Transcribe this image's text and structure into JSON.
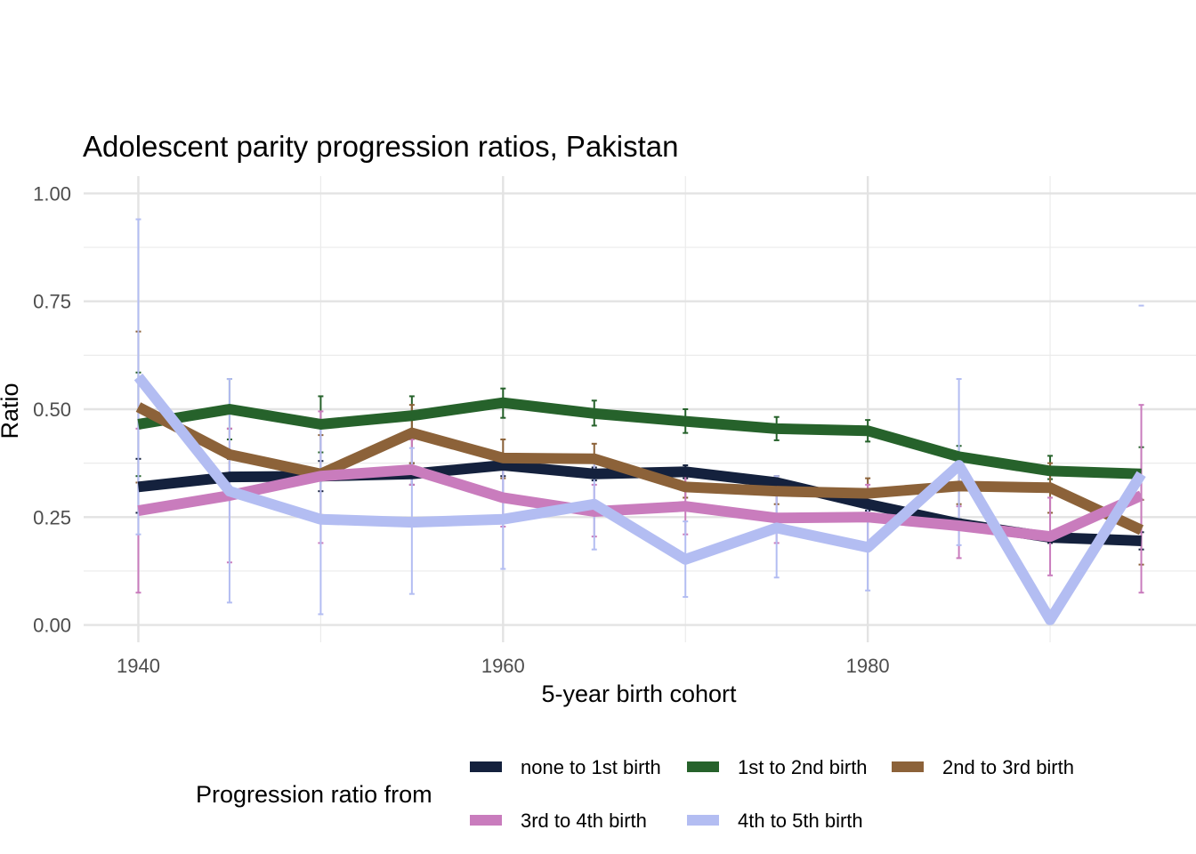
{
  "chart_data": {
    "type": "line",
    "title": "Adolescent parity progression ratios,  Pakistan",
    "xlabel": "5-year birth cohort",
    "ylabel": "Ratio",
    "x": [
      1940,
      1945,
      1950,
      1955,
      1960,
      1965,
      1970,
      1975,
      1980,
      1985,
      1990,
      1995
    ],
    "xlim": [
      1937,
      1998
    ],
    "ylim": [
      -0.04,
      1.04
    ],
    "x_ticks": [
      1940,
      1960,
      1980
    ],
    "x_tick_labels": [
      "1940",
      "1960",
      "1980"
    ],
    "y_ticks": [
      0,
      0.25,
      0.5,
      0.75,
      1
    ],
    "y_tick_labels": [
      "0.00",
      "0.25",
      "0.50",
      "0.75",
      "1.00"
    ],
    "grid": true,
    "legend": {
      "title": "Progression ratio from",
      "position": "bottom"
    },
    "series": [
      {
        "name": "none to 1st birth",
        "color": "#14213d",
        "values": [
          0.32,
          0.343,
          0.345,
          0.35,
          0.37,
          0.35,
          0.355,
          0.33,
          0.28,
          0.235,
          0.203,
          0.195
        ],
        "lower": [
          0.26,
          0.3,
          0.31,
          0.325,
          0.345,
          0.335,
          0.34,
          0.315,
          0.265,
          0.225,
          0.19,
          0.175
        ],
        "upper": [
          0.385,
          0.385,
          0.38,
          0.375,
          0.395,
          0.365,
          0.37,
          0.345,
          0.295,
          0.245,
          0.215,
          0.215
        ]
      },
      {
        "name": "1st to 2nd birth",
        "color": "#26622b",
        "values": [
          0.465,
          0.5,
          0.465,
          0.485,
          0.515,
          0.49,
          0.472,
          0.455,
          0.45,
          0.39,
          0.357,
          0.35
        ],
        "lower": [
          0.345,
          0.43,
          0.4,
          0.44,
          0.48,
          0.462,
          0.445,
          0.428,
          0.425,
          0.37,
          0.338,
          0.29
        ],
        "upper": [
          0.585,
          0.57,
          0.53,
          0.53,
          0.548,
          0.52,
          0.5,
          0.482,
          0.475,
          0.415,
          0.392,
          0.412
        ]
      },
      {
        "name": "2nd to 3rd birth",
        "color": "#8c6239",
        "values": [
          0.505,
          0.395,
          0.35,
          0.445,
          0.387,
          0.385,
          0.32,
          0.31,
          0.305,
          0.322,
          0.318,
          0.22
        ],
        "lower": [
          0.33,
          0.305,
          0.255,
          0.375,
          0.34,
          0.345,
          0.295,
          0.28,
          0.275,
          0.28,
          0.26,
          0.14
        ],
        "upper": [
          0.68,
          0.455,
          0.44,
          0.51,
          0.43,
          0.42,
          0.355,
          0.345,
          0.34,
          0.36,
          0.375,
          0.29
        ]
      },
      {
        "name": "3rd to 4th birth",
        "color": "#c97cbd",
        "values": [
          0.265,
          0.3,
          0.345,
          0.36,
          0.295,
          0.263,
          0.275,
          0.248,
          0.25,
          0.23,
          0.205,
          0.3
        ],
        "lower": [
          0.075,
          0.145,
          0.19,
          0.325,
          0.228,
          0.205,
          0.21,
          0.19,
          0.18,
          0.155,
          0.115,
          0.075
        ],
        "upper": [
          0.455,
          0.455,
          0.495,
          0.43,
          0.365,
          0.325,
          0.345,
          0.315,
          0.325,
          0.275,
          0.295,
          0.51
        ]
      },
      {
        "name": "4th to 5th birth",
        "color": "#b3bdf2",
        "values": [
          0.575,
          0.31,
          0.245,
          0.238,
          0.245,
          0.28,
          0.152,
          0.225,
          0.18,
          0.37,
          0.012,
          0.35
        ],
        "lower": [
          0.21,
          0.052,
          0.025,
          0.072,
          0.13,
          0.175,
          0.065,
          0.11,
          0.08,
          0.185,
          null,
          null
        ],
        "upper": [
          0.94,
          0.57,
          0.465,
          0.41,
          0.36,
          0.385,
          0.24,
          0.345,
          0.285,
          0.57,
          null,
          0.74
        ]
      }
    ]
  }
}
